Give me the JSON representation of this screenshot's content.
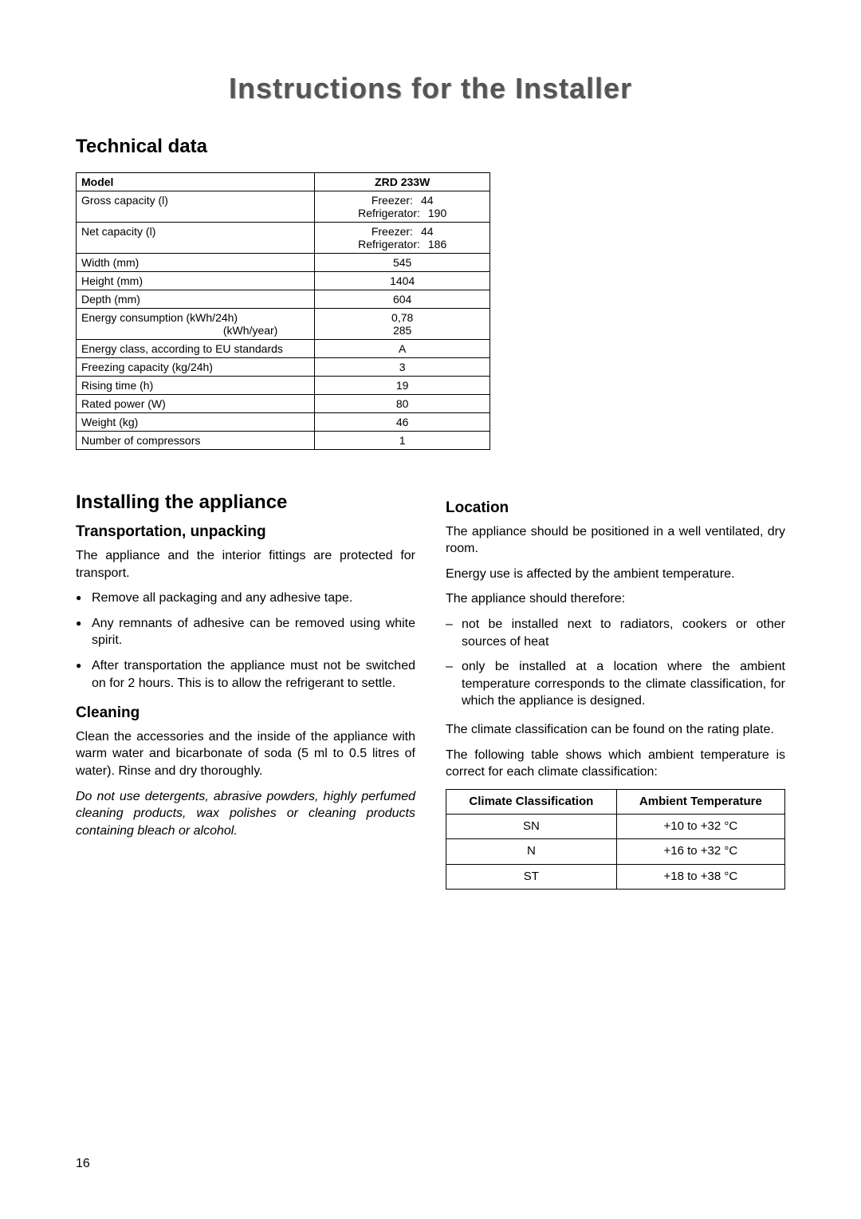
{
  "title": "Instructions for the Installer",
  "tech_data_heading": "Technical data",
  "spec_table": {
    "header_label": "Model",
    "header_value": "ZRD 233W",
    "rows": [
      {
        "label": "Gross capacity (l)",
        "lines": [
          {
            "k": "Freezer:",
            "v": "44"
          },
          {
            "k": "Refrigerator:",
            "v": "190"
          }
        ]
      },
      {
        "label": "Net capacity (l)",
        "lines": [
          {
            "k": "Freezer:",
            "v": "44"
          },
          {
            "k": "Refrigerator:",
            "v": "186"
          }
        ]
      },
      {
        "label": "Width (mm)",
        "value": "545"
      },
      {
        "label": "Height (mm)",
        "value": "1404"
      },
      {
        "label": "Depth (mm)",
        "value": "604"
      },
      {
        "label_lines": [
          "Energy consumption (kWh/24h)",
          "(kWh/year)"
        ],
        "value_lines": [
          "0,78",
          "285"
        ]
      },
      {
        "label": "Energy class, according to EU standards",
        "value": "A"
      },
      {
        "label": "Freezing capacity (kg/24h)",
        "value": "3"
      },
      {
        "label": "Rising time (h)",
        "value": "19"
      },
      {
        "label": "Rated power (W)",
        "value": "80"
      },
      {
        "label": "Weight (kg)",
        "value": "46"
      },
      {
        "label": "Number of compressors",
        "value": "1"
      }
    ]
  },
  "left": {
    "heading": "Installing the appliance",
    "transport_heading": "Transportation, unpacking",
    "transport_intro": "The appliance and the interior fittings are protected for transport.",
    "transport_items": [
      "Remove all packaging and any adhesive tape.",
      "Any remnants of adhesive can be removed using white spirit.",
      "After transportation the appliance must not be switched on for 2 hours. This is to allow the refrigerant to settle."
    ],
    "cleaning_heading": "Cleaning",
    "cleaning_p1": "Clean the accessories and the inside of the appliance with warm water and bicarbonate of soda (5 ml to 0.5 litres of water). Rinse and dry thoroughly.",
    "cleaning_p2": "Do not use detergents, abrasive powders, highly perfumed cleaning products, wax polishes or cleaning products containing bleach or alcohol."
  },
  "right": {
    "location_heading": "Location",
    "p1": "The appliance should be positioned in a well ventilated, dry room.",
    "p2": "Energy use is affected by the ambient temperature.",
    "p3": "The appliance should therefore:",
    "dash_items": [
      "not be installed next to radiators, cookers or other sources of heat",
      "only be installed at a location where the ambient temperature corresponds to the climate classification, for which the appliance is designed."
    ],
    "p4": "The climate classification can be found on the rating plate.",
    "p5": "The following table shows which ambient temperature is correct for each climate classification:",
    "climate_table": {
      "h1": "Climate Classification",
      "h2": "Ambient Temperature",
      "rows": [
        {
          "c": "SN",
          "t": "+10 to +32 °C"
        },
        {
          "c": "N",
          "t": "+16 to +32 °C"
        },
        {
          "c": "ST",
          "t": "+18 to +38 °C"
        }
      ]
    }
  },
  "page_number": "16"
}
